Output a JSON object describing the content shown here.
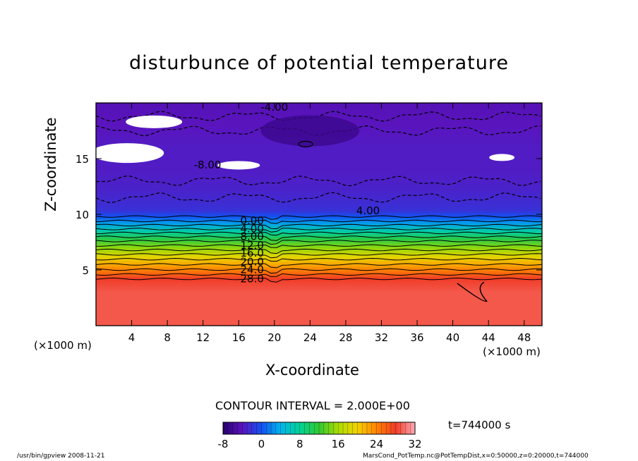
{
  "chart_data": {
    "type": "heatmap",
    "title": "disturbunce of potential temperature",
    "xlabel": "X-coordinate",
    "ylabel": "Z-coordinate",
    "x_unit": "(×1000 m)",
    "z_unit": "(×1000 m)",
    "xlim": [
      0,
      50
    ],
    "ylim": [
      0,
      20
    ],
    "x_ticks": [
      4,
      8,
      12,
      16,
      20,
      24,
      28,
      32,
      36,
      40,
      44,
      48
    ],
    "y_ticks": [
      5,
      10,
      15
    ],
    "contour_interval": "CONTOUR INTERVAL = 2.000E+00",
    "colorbar": {
      "min": -8,
      "max": 32,
      "ticks": [
        -8,
        0,
        8,
        16,
        24,
        32
      ]
    },
    "time": "t=744000 s",
    "contour_labels": [
      "-4.00",
      "-8.00",
      "4.00",
      "0.00",
      "4.00",
      "8.00",
      "12.0",
      "16.0",
      "20.0",
      "24.0",
      "28.0"
    ],
    "profile": {
      "z": [
        0,
        3,
        4.2,
        4.8,
        5.5,
        6.2,
        7.0,
        7.8,
        8.5,
        9.2,
        9.8,
        10.3,
        12,
        14,
        16,
        18,
        20
      ],
      "value": [
        29,
        29,
        28,
        25,
        22,
        19,
        15,
        11,
        7,
        3,
        0,
        -2,
        -3,
        -3.5,
        -3.5,
        -4,
        -4.5
      ]
    },
    "undefined_regions_note_color": "#ffffff"
  },
  "footer": {
    "left": "/usr/bin/gpview   2008-11-21",
    "right": "MarsCond_PotTemp.nc@PotTempDist,x=0:50000,z=0:20000,t=744000"
  }
}
